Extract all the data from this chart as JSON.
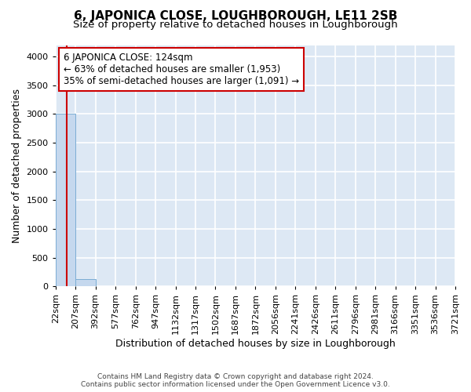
{
  "title": "6, JAPONICA CLOSE, LOUGHBOROUGH, LE11 2SB",
  "subtitle": "Size of property relative to detached houses in Loughborough",
  "xlabel": "Distribution of detached houses by size in Loughborough",
  "ylabel": "Number of detached properties",
  "footer_line1": "Contains HM Land Registry data © Crown copyright and database right 2024.",
  "footer_line2": "Contains public sector information licensed under the Open Government Licence v3.0.",
  "bar_edges": [
    22,
    207,
    392,
    577,
    762,
    947,
    1132,
    1317,
    1502,
    1687,
    1872,
    2056,
    2241,
    2426,
    2611,
    2796,
    2981,
    3166,
    3351,
    3536,
    3721
  ],
  "bar_labels": [
    "22sqm",
    "207sqm",
    "392sqm",
    "577sqm",
    "762sqm",
    "947sqm",
    "1132sqm",
    "1317sqm",
    "1502sqm",
    "1687sqm",
    "1872sqm",
    "2056sqm",
    "2241sqm",
    "2426sqm",
    "2611sqm",
    "2796sqm",
    "2981sqm",
    "3166sqm",
    "3351sqm",
    "3536sqm",
    "3721sqm"
  ],
  "bar_heights": [
    3000,
    130,
    5,
    2,
    1,
    1,
    0,
    0,
    0,
    0,
    0,
    0,
    0,
    0,
    0,
    0,
    0,
    0,
    0,
    0
  ],
  "bar_color": "#c5d8ee",
  "bar_edge_color": "#7aadd4",
  "property_size": 124,
  "property_line_color": "#cc0000",
  "annotation_text": "6 JAPONICA CLOSE: 124sqm\n← 63% of detached houses are smaller (1,953)\n35% of semi-detached houses are larger (1,091) →",
  "annotation_box_color": "#ffffff",
  "annotation_box_edge_color": "#cc0000",
  "ylim": [
    0,
    4200
  ],
  "yticks": [
    0,
    500,
    1000,
    1500,
    2000,
    2500,
    3000,
    3500,
    4000
  ],
  "bg_color": "#dde8f4",
  "grid_color": "#ffffff",
  "title_fontsize": 11,
  "subtitle_fontsize": 9.5,
  "axis_label_fontsize": 9,
  "tick_fontsize": 8,
  "annotation_fontsize": 8.5
}
